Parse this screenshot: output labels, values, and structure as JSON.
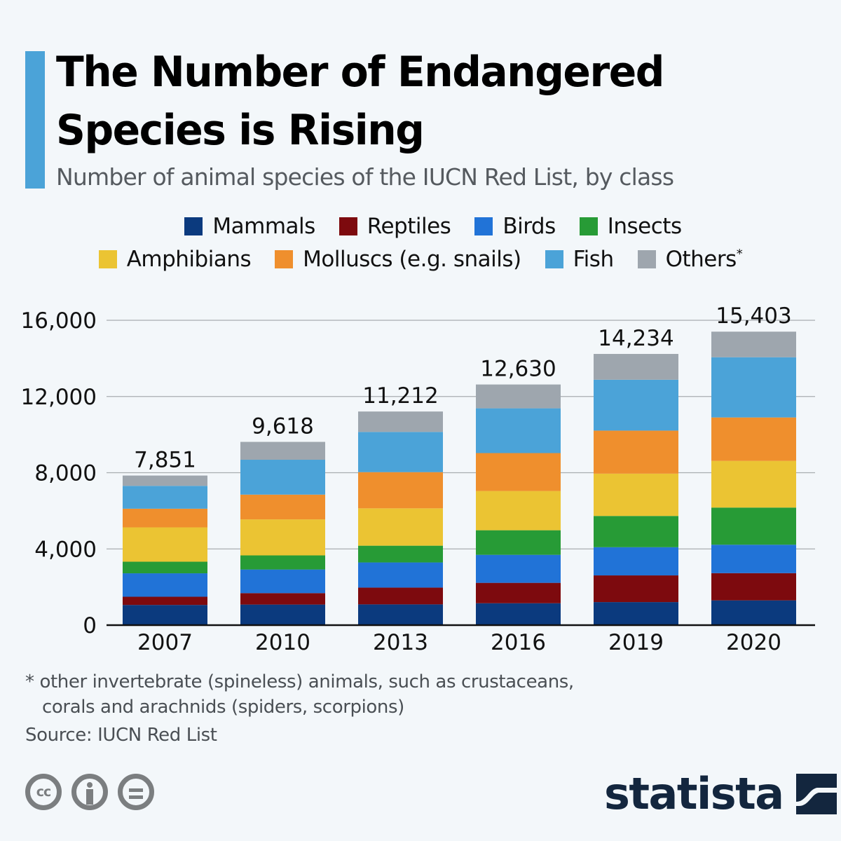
{
  "header": {
    "title_line1": "The Number of Endangered",
    "title_line2": "Species is Rising",
    "subtitle": "Number of animal species of the IUCN Red List, by class"
  },
  "legend": [
    {
      "label": "Mammals",
      "color": "#0b3a7e",
      "asterisk": ""
    },
    {
      "label": "Reptiles",
      "color": "#7d0a0e",
      "asterisk": ""
    },
    {
      "label": "Birds",
      "color": "#2173d7",
      "asterisk": ""
    },
    {
      "label": "Insects",
      "color": "#279b36",
      "asterisk": ""
    },
    {
      "label": "Amphibians",
      "color": "#ebc433",
      "asterisk": ""
    },
    {
      "label": "Molluscs (e.g. snails)",
      "color": "#ef8f2d",
      "asterisk": ""
    },
    {
      "label": "Fish",
      "color": "#4ba3d8",
      "asterisk": ""
    },
    {
      "label": "Others",
      "color": "#9ea6ae",
      "asterisk": "*"
    }
  ],
  "chart_data": {
    "type": "bar",
    "stacked": true,
    "title": "The Number of Endangered Species is Rising",
    "subtitle": "Number of animal species of the IUCN Red List, by class",
    "xlabel": "",
    "ylabel": "",
    "categories": [
      "2007",
      "2010",
      "2013",
      "2016",
      "2019",
      "2020"
    ],
    "totals": [
      7851,
      9618,
      11212,
      12630,
      14234,
      15403
    ],
    "total_labels": [
      "7,851",
      "9,618",
      "11,212",
      "12,630",
      "14,234",
      "15,403"
    ],
    "series": [
      {
        "name": "Mammals",
        "color": "#0b3a7e",
        "values": [
          1060,
          1080,
          1090,
          1150,
          1210,
          1300
        ]
      },
      {
        "name": "Reptiles",
        "color": "#7d0a0e",
        "values": [
          430,
          600,
          880,
          1070,
          1400,
          1430
        ]
      },
      {
        "name": "Birds",
        "color": "#2173d7",
        "values": [
          1230,
          1240,
          1320,
          1470,
          1480,
          1490
        ]
      },
      {
        "name": "Insects",
        "color": "#279b36",
        "values": [
          610,
          740,
          880,
          1290,
          1640,
          1950
        ]
      },
      {
        "name": "Amphibians",
        "color": "#ebc433",
        "values": [
          1800,
          1890,
          1960,
          2060,
          2220,
          2450
        ]
      },
      {
        "name": "Molluscs (e.g. snails)",
        "color": "#ef8f2d",
        "values": [
          980,
          1300,
          1900,
          1990,
          2260,
          2280
        ]
      },
      {
        "name": "Fish",
        "color": "#4ba3d8",
        "values": [
          1200,
          1830,
          2110,
          2350,
          2670,
          3160
        ]
      },
      {
        "name": "Others",
        "color": "#9ea6ae",
        "values": [
          541,
          938,
          1072,
          1250,
          1354,
          1343
        ]
      }
    ],
    "ylim": [
      0,
      16000
    ],
    "yticks": [
      0,
      4000,
      8000,
      12000,
      16000
    ],
    "ytick_labels": [
      "0",
      "4,000",
      "8,000",
      "12,000",
      "16,000"
    ],
    "grid": true,
    "legend_position": "top-center"
  },
  "footer": {
    "footnote_line1": "* other invertebrate (spineless) animals, such as crustaceans,",
    "footnote_line2": "corals and arachnids (spiders, scorpions)",
    "source": "Source: IUCN Red List",
    "license_icons": [
      "cc-icon",
      "attribution-icon",
      "no-derivatives-icon"
    ],
    "cc_text": "cc",
    "brand": "statista"
  }
}
